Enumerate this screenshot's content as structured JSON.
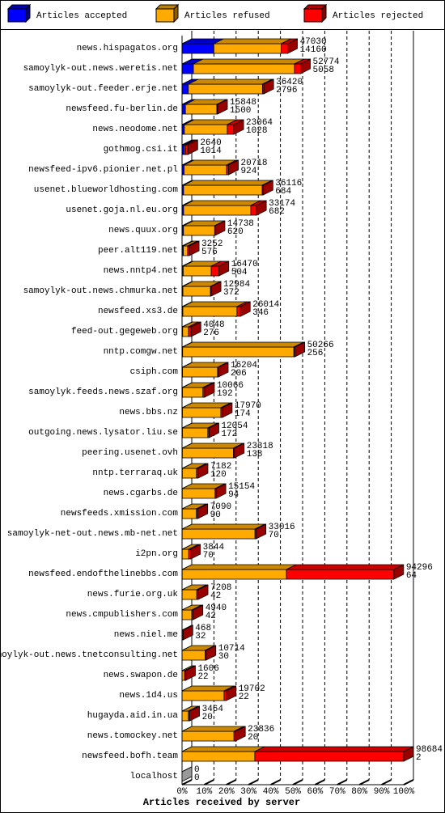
{
  "chart_data": {
    "type": "bar3d-stacked-horizontal",
    "x_label": "Articles received by server",
    "categories": [
      "news.hispagatos.org",
      "samoylyk-out.news.weretis.net",
      "samoylyk-out.feeder.erje.net",
      "newsfeed.fu-berlin.de",
      "news.neodome.net",
      "gothmog.csi.it",
      "newsfeed-ipv6.pionier.net.pl",
      "usenet.blueworldhosting.com",
      "usenet.goja.nl.eu.org",
      "news.quux.org",
      "peer.alt119.net",
      "news.nntp4.net",
      "samoylyk-out.news.chmurka.net",
      "newsfeed.xs3.de",
      "feed-out.gegeweb.org",
      "nntp.comgw.net",
      "csiph.com",
      "samoylyk.feeds.news.szaf.org",
      "news.bbs.nz",
      "outgoing.news.lysator.liu.se",
      "peering.usenet.ovh",
      "nntp.terraraq.uk",
      "news.cgarbs.de",
      "newsfeeds.xmission.com",
      "samoylyk-net-out.news.mb-net.net",
      "i2pn.org",
      "newsfeed.endofthelinebbs.com",
      "news.furie.org.uk",
      "news.cmpublishers.com",
      "news.niel.me",
      "samoylyk-out.news.tnetconsulting.net",
      "news.swapon.de",
      "news.1d4.us",
      "hugayda.aid.in.ua",
      "news.tomockey.net",
      "newsfeed.bofh.team",
      "localhost"
    ],
    "totals": [
      47030,
      52774,
      36420,
      15848,
      23064,
      2640,
      20718,
      36116,
      33174,
      14738,
      3252,
      16470,
      12984,
      26014,
      4048,
      50266,
      16204,
      10066,
      17970,
      12054,
      23318,
      7182,
      15154,
      7090,
      33016,
      3844,
      94296,
      7208,
      4940,
      468,
      10714,
      1606,
      19702,
      3464,
      23836,
      98684,
      0
    ],
    "series": [
      {
        "name": "Articles accepted",
        "color": "#0000ff",
        "values": [
          14160,
          5058,
          2796,
          1500,
          1028,
          1014,
          924,
          684,
          682,
          620,
          576,
          504,
          372,
          346,
          276,
          256,
          206,
          192,
          174,
          172,
          138,
          120,
          94,
          90,
          70,
          70,
          64,
          42,
          42,
          32,
          30,
          22,
          22,
          20,
          20,
          2,
          0
        ]
      },
      {
        "name": "Articles refused",
        "color": "#ffaa00",
        "values": [
          30000,
          45000,
          33000,
          14000,
          19100,
          500,
          18900,
          35000,
          29900,
          13900,
          1900,
          12500,
          12300,
          24100,
          2600,
          49500,
          15600,
          9100,
          17100,
          11300,
          22700,
          6300,
          14600,
          6300,
          32400,
          2900,
          46400,
          6500,
          4300,
          0,
          10200,
          1100,
          18700,
          2800,
          23100,
          32400,
          0
        ]
      },
      {
        "name": "Articles rejected",
        "color": "#ff0000",
        "values": [
          2870,
          2716,
          624,
          348,
          2936,
          1126,
          894,
          432,
          2592,
          218,
          776,
          3466,
          312,
          1568,
          1172,
          510,
          398,
          774,
          696,
          582,
          480,
          762,
          460,
          700,
          546,
          874,
          47832,
          666,
          598,
          436,
          484,
          484,
          980,
          644,
          716,
          66282,
          0
        ]
      }
    ],
    "xlim": [
      0,
      98684
    ],
    "xticks": [
      {
        "value": 0,
        "label": "0%"
      },
      {
        "value": 9868.4,
        "label": "10%"
      },
      {
        "value": 19736.8,
        "label": "20%"
      },
      {
        "value": 29605.2,
        "label": "30%"
      },
      {
        "value": 39473.6,
        "label": "40%"
      },
      {
        "value": 49342,
        "label": "50%"
      },
      {
        "value": 59210.4,
        "label": "60%"
      },
      {
        "value": 69078.8,
        "label": "70%"
      },
      {
        "value": 78947.2,
        "label": "80%"
      },
      {
        "value": 88815.6,
        "label": "90%"
      },
      {
        "value": 98684,
        "label": "100%"
      }
    ],
    "grid": true
  }
}
